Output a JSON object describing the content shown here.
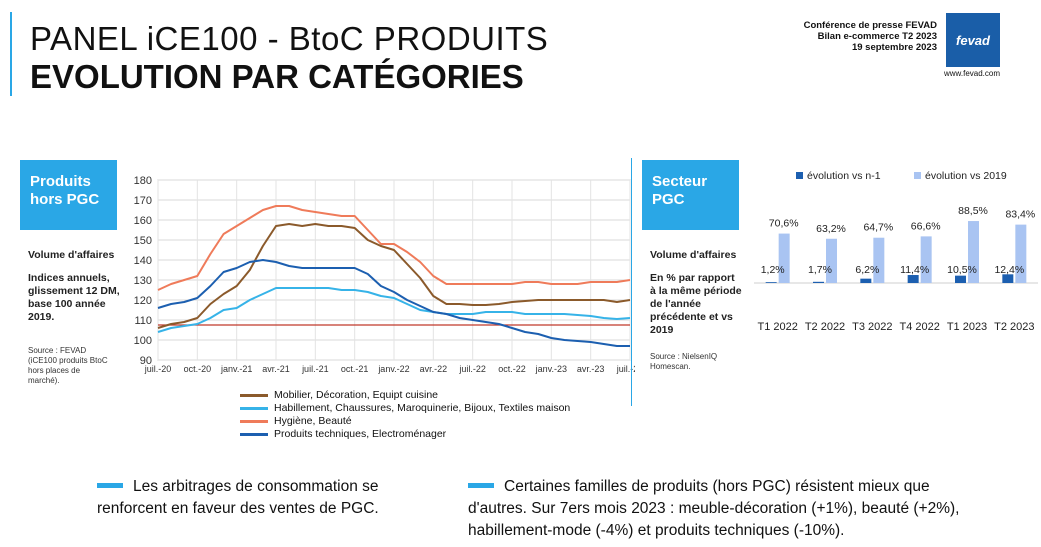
{
  "header": {
    "title_line1": "PANEL iCE100 - BtoC PRODUITS",
    "title_line2": "EVOLUTION PAR CATÉGORIES",
    "info_line1": "Conférence de presse FEVAD",
    "info_line2": "Bilan e-commerce T2 2023",
    "info_line3": "19 septembre 2023",
    "logo_text": "fevad",
    "logo_url": "www.fevad.com",
    "accent_color": "#2aa7e6",
    "logo_color": "#1a5ea8"
  },
  "left_panel": {
    "box_title": "Produits hors PGC",
    "subtitle": "Volume d'affaires",
    "description": "Indices annuels, glissement 12 DM, base 100 année 2019.",
    "source": "Source : FEVAD (iCE100 produits BtoC hors places de marché)."
  },
  "right_panel": {
    "box_title": "Secteur PGC",
    "subtitle": "Volume d'affaires",
    "description": "En % par rapport à la même période de l'année précédente et vs 2019",
    "source": "Source : NielsenIQ Homescan."
  },
  "chart_data": [
    {
      "type": "line",
      "x": [
        "juil.-20",
        "août-20",
        "sept.-20",
        "oct.-20",
        "nov.-20",
        "déc.-20",
        "janv.-21",
        "févr.-21",
        "mars-21",
        "avr.-21",
        "mai-21",
        "juin-21",
        "juil.-21",
        "août-21",
        "sept.-21",
        "oct.-21",
        "nov.-21",
        "déc.-21",
        "janv.-22",
        "févr.-22",
        "mars-22",
        "avr.-22",
        "mai-22",
        "juin-22",
        "juil.-22",
        "août-22",
        "sept.-22",
        "oct.-22",
        "nov.-22",
        "déc.-22",
        "janv.-23",
        "févr.-23",
        "mars-23",
        "avr.-23",
        "mai-23",
        "juin-23",
        "juil.-23"
      ],
      "x_tick_labels": [
        "juil.-20",
        "oct.-20",
        "janv.-21",
        "avr.-21",
        "juil.-21",
        "oct.-21",
        "janv.-22",
        "avr.-22",
        "juil.-22",
        "oct.-22",
        "janv.-23",
        "avr.-23",
        "juil.-23"
      ],
      "ylim": [
        90,
        180
      ],
      "yticks": [
        90,
        100,
        110,
        120,
        130,
        140,
        150,
        160,
        170,
        180
      ],
      "reference_line": 107.5,
      "reference_color": "#c0392b",
      "grid": true,
      "series": [
        {
          "name": "Mobilier, Décoration, Equipt cuisine",
          "color": "#8b5a2b",
          "values": [
            106,
            108,
            109,
            111,
            118,
            123,
            127,
            135,
            147,
            157,
            158,
            157,
            158,
            157,
            157,
            156,
            150,
            147,
            145,
            138,
            131,
            122,
            118,
            118,
            117.5,
            117.5,
            118,
            119,
            119.5,
            120,
            120,
            120,
            120,
            120,
            120,
            119,
            120
          ]
        },
        {
          "name": "Habillement, Chaussures, Maroquinerie, Bijoux, Textiles maison",
          "color": "#36b3e8",
          "values": [
            104,
            106,
            107,
            108,
            111,
            115,
            116,
            120,
            123,
            126,
            126,
            126,
            126,
            126,
            125,
            125,
            124,
            122,
            121,
            118,
            115,
            114,
            113,
            113,
            113,
            114,
            114,
            114,
            113,
            113,
            113,
            113,
            112.5,
            112,
            111,
            110.5,
            111
          ]
        },
        {
          "name": "Hygiène, Beauté",
          "color": "#ef7b5a",
          "values": [
            125,
            128,
            130,
            132,
            143,
            153,
            157,
            161,
            165,
            167,
            167,
            165,
            164,
            163,
            162,
            162,
            155,
            148,
            148,
            144,
            139,
            132,
            128,
            128,
            128,
            128,
            128,
            128,
            129,
            129,
            128,
            128,
            128,
            129,
            129,
            129,
            130
          ]
        },
        {
          "name": "Produits techniques, Electroménager",
          "color": "#1c5fb0",
          "values": [
            116,
            118,
            119,
            121,
            127,
            134,
            136,
            139,
            140,
            139,
            137,
            136,
            136,
            136,
            136,
            136,
            133,
            127,
            124,
            120,
            117,
            114,
            113,
            111,
            110,
            109,
            108,
            106,
            104,
            103,
            101,
            100,
            99.5,
            99,
            98,
            97,
            97
          ]
        }
      ]
    },
    {
      "type": "bar",
      "categories": [
        "T1 2022",
        "T2 2022",
        "T3 2022",
        "T4 2022",
        "T1 2023",
        "T2 2023"
      ],
      "series": [
        {
          "name": "évolution vs n-1",
          "color": "#1c5fb0",
          "values": [
            1.2,
            1.7,
            6.2,
            11.4,
            10.5,
            12.4
          ],
          "labels": [
            "1,2%",
            "1,7%",
            "6,2%",
            "11,4%",
            "10,5%",
            "12,4%"
          ]
        },
        {
          "name": "évolution vs 2019",
          "color": "#a9c4f2",
          "values": [
            70.6,
            63.2,
            64.7,
            66.6,
            88.5,
            83.4
          ],
          "labels": [
            "70,6%",
            "63,2%",
            "64,7%",
            "66,6%",
            "88,5%",
            "83,4%"
          ]
        }
      ],
      "ylim": [
        0,
        130
      ],
      "legend": "top"
    }
  ],
  "bottom": {
    "left_text": "Les arbitrages de consommation se renforcent en faveur des ventes de PGC.",
    "right_text": "Certaines familles de produits (hors PGC) résistent mieux que d'autres. Sur 7ers mois 2023 : meuble-décoration (+1%), beauté (+2%),  habillement-mode (-4%) et produits techniques (-10%)."
  }
}
